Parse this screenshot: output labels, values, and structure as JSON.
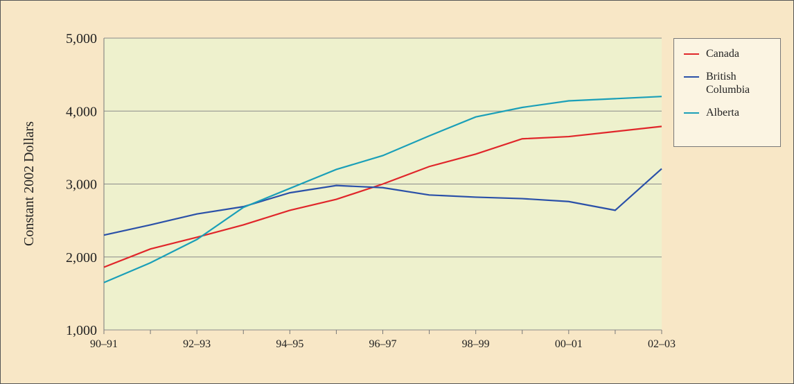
{
  "chart_data": {
    "type": "line",
    "y_label": "Constant 2002 Dollars",
    "categories": [
      "90–91",
      null,
      "92–93",
      null,
      "94–95",
      null,
      "96–97",
      null,
      "98–99",
      null,
      "00–01",
      null,
      "02–03"
    ],
    "series": [
      {
        "name": "Canada",
        "color": "#e0262a",
        "values": [
          1860,
          2110,
          2270,
          2440,
          2640,
          2790,
          3000,
          3240,
          3410,
          3620,
          3650,
          3720,
          3790
        ]
      },
      {
        "name": "British Columbia",
        "color": "#2a50a8",
        "values": [
          2300,
          2440,
          2590,
          2690,
          2880,
          2980,
          2950,
          2850,
          2820,
          2800,
          2760,
          2640,
          3210
        ]
      },
      {
        "name": "Alberta",
        "color": "#1a9fb8",
        "values": [
          1650,
          1920,
          2240,
          2680,
          2940,
          3200,
          3390,
          3660,
          3920,
          4050,
          4140,
          4170,
          4200
        ]
      }
    ],
    "ylim": [
      1000,
      5000
    ],
    "yticks": [
      {
        "value": 1000,
        "label": "1,000"
      },
      {
        "value": 2000,
        "label": "2,000"
      },
      {
        "value": 3000,
        "label": "3,000"
      },
      {
        "value": 4000,
        "label": "4,000"
      },
      {
        "value": 5000,
        "label": "5,000"
      }
    ],
    "grid": true,
    "legend": "right"
  }
}
